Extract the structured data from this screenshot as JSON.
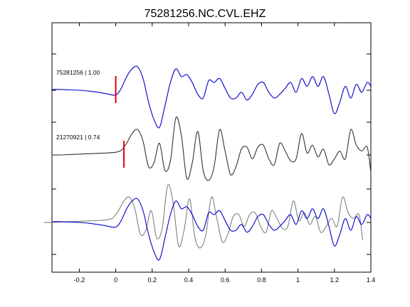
{
  "chart_data": {
    "type": "line",
    "title": "75281256.NC.CVL.EHZ",
    "xlabel": "",
    "ylabel": "",
    "xlim": [
      -0.35,
      1.4
    ],
    "x_ticks": [
      -0.2,
      0,
      0.2,
      0.4,
      0.6,
      0.8,
      1,
      1.2,
      1.4
    ],
    "x_tick_labels": [
      "-0.2",
      "0",
      "0.2",
      "0.4",
      "0.6",
      "0.8",
      "1",
      "1.2",
      "1.4"
    ],
    "grid": false,
    "panels": [
      {
        "label": "75281256 | 1.00",
        "color": "#0000cc",
        "pick_time": 0.0,
        "x": [
          -0.35,
          -0.3,
          -0.25,
          -0.2,
          -0.15,
          -0.1,
          -0.05,
          0,
          0.03,
          0.06,
          0.09,
          0.12,
          0.15,
          0.18,
          0.21,
          0.24,
          0.27,
          0.3,
          0.33,
          0.36,
          0.39,
          0.42,
          0.45,
          0.48,
          0.51,
          0.54,
          0.57,
          0.6,
          0.63,
          0.66,
          0.69,
          0.72,
          0.75,
          0.78,
          0.81,
          0.84,
          0.87,
          0.9,
          0.93,
          0.96,
          0.99,
          1.02,
          1.05,
          1.08,
          1.11,
          1.14,
          1.17,
          1.2,
          1.23,
          1.26,
          1.29,
          1.32,
          1.35,
          1.38,
          1.4
        ],
        "y": [
          0.02,
          0.02,
          0.01,
          0.0,
          -0.02,
          -0.05,
          -0.09,
          -0.12,
          0.05,
          0.35,
          0.55,
          0.6,
          0.3,
          -0.3,
          -0.75,
          -0.95,
          -0.4,
          0.2,
          0.55,
          0.35,
          0.4,
          0.2,
          -0.1,
          -0.2,
          0.25,
          0.2,
          0.3,
          0.05,
          -0.2,
          -0.2,
          -0.05,
          -0.25,
          -0.1,
          0.15,
          0.2,
          -0.05,
          -0.2,
          -0.1,
          0.05,
          0.2,
          -0.05,
          0.3,
          0.1,
          0.35,
          0.1,
          0.35,
          -0.1,
          -0.6,
          -0.3,
          0.1,
          -0.2,
          0.15,
          -0.05,
          0.2,
          0.1
        ]
      },
      {
        "label": "21270921 | 0.74",
        "color": "#333333",
        "pick_time": 0.045,
        "x": [
          -0.35,
          -0.3,
          -0.25,
          -0.2,
          -0.15,
          -0.1,
          -0.05,
          0,
          0.03,
          0.06,
          0.09,
          0.12,
          0.15,
          0.18,
          0.21,
          0.24,
          0.27,
          0.3,
          0.33,
          0.36,
          0.39,
          0.42,
          0.45,
          0.48,
          0.51,
          0.54,
          0.57,
          0.6,
          0.63,
          0.66,
          0.69,
          0.72,
          0.75,
          0.78,
          0.81,
          0.84,
          0.87,
          0.9,
          0.93,
          0.96,
          0.99,
          1.02,
          1.05,
          1.08,
          1.11,
          1.14,
          1.17,
          1.2,
          1.23,
          1.26,
          1.29,
          1.32,
          1.35,
          1.38,
          1.4
        ],
        "y": [
          0.0,
          0.0,
          0.01,
          0.02,
          0.03,
          0.04,
          0.05,
          0.07,
          0.12,
          0.3,
          0.55,
          0.65,
          0.35,
          -0.3,
          -0.2,
          0.3,
          -0.4,
          -0.15,
          0.95,
          0.5,
          -0.6,
          -0.2,
          0.6,
          -0.4,
          -0.65,
          -0.3,
          0.65,
          0.1,
          -0.5,
          -0.3,
          0.15,
          0.2,
          -0.1,
          0.2,
          0.25,
          -0.1,
          -0.25,
          0.3,
          0.1,
          -0.15,
          -0.1,
          0.55,
          0.05,
          0.25,
          -0.05,
          0.15,
          -0.25,
          -0.1,
          0.1,
          -0.1,
          0.65,
          0.25,
          0.1,
          0.2,
          -0.45
        ]
      }
    ]
  }
}
